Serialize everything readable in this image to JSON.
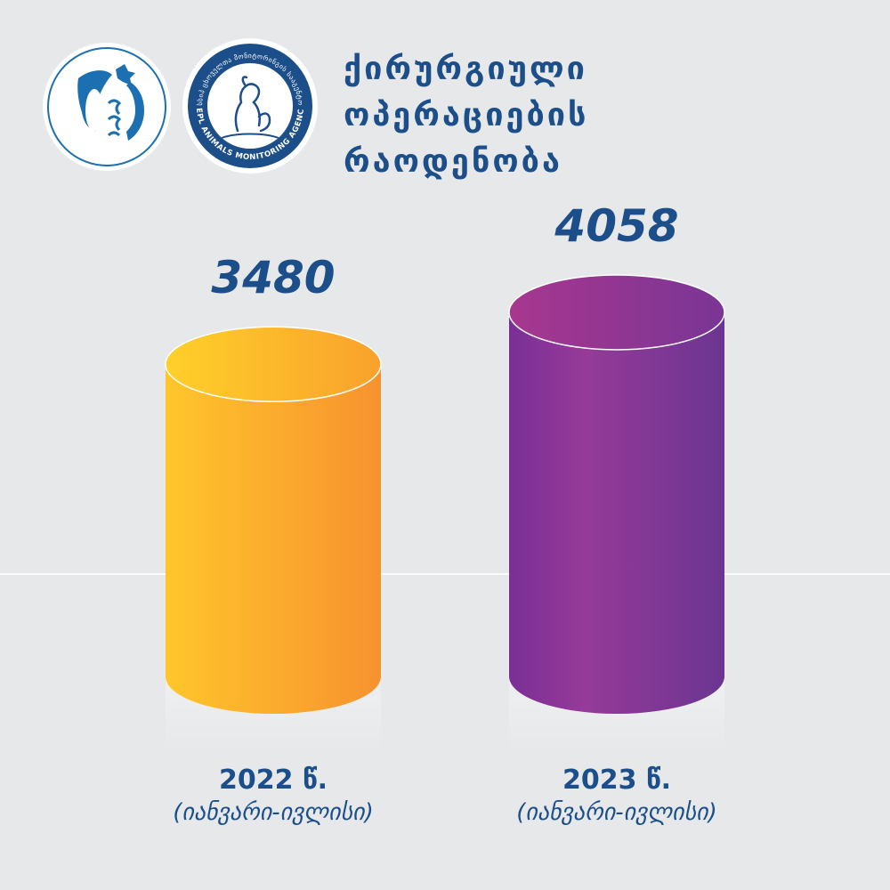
{
  "title_lines": [
    "ქირურგიული",
    "ოპერაციების",
    "რაოდენობა"
  ],
  "logos": {
    "left_name": "georgian-ministry-emblem",
    "right_name": "lepl-animals-monitoring-agency-emblem",
    "right_ring_text_en": "LEPL ANIMALS MONITORING AGENCY",
    "right_ring_text_ka": "სსიპ ცხოველთა მონიტორინგის სააგენტო"
  },
  "chart_data": {
    "type": "bar",
    "categories": [
      "2022 წ.",
      "2023 წ."
    ],
    "sub_labels": [
      "(იანვარი-ივლისი)",
      "(იანვარი-ივლისი)"
    ],
    "values": [
      3480,
      4058
    ],
    "value_labels": [
      "3480",
      "4058"
    ],
    "colors": [
      "#fbb52e",
      "#8a2f99"
    ]
  },
  "colors": {
    "background": "#e6e8ea",
    "text_primary": "#1c4f8a"
  }
}
